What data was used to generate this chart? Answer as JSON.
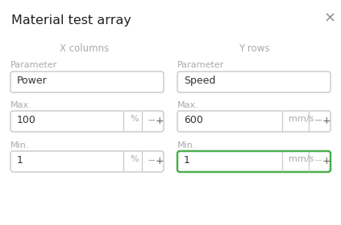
{
  "title": "Material test array",
  "close_symbol": "×",
  "col_left_label": "X columns",
  "col_right_label": "Y rows",
  "param_label": "Parameter",
  "left_param_value": "Power",
  "right_param_value": "Speed",
  "max_label": "Max.",
  "min_label": "Min.",
  "left_max_value": "100",
  "left_max_unit": "%",
  "right_max_value": "600",
  "right_max_unit": "mm/s",
  "left_min_value": "1",
  "left_min_unit": "%",
  "right_min_value": "1",
  "right_min_unit": "mm/s",
  "bg_color": "#ffffff",
  "border_color": "#c8c8c8",
  "active_border_color": "#4caf50",
  "label_color": "#aaaaaa",
  "title_color": "#222222",
  "value_color": "#333333",
  "unit_color": "#aaaaaa",
  "minus_color": "#aaaaaa",
  "plus_color": "#555555",
  "minus_inactive": "#cccccc",
  "plus_inactive": "#aaaaaa"
}
